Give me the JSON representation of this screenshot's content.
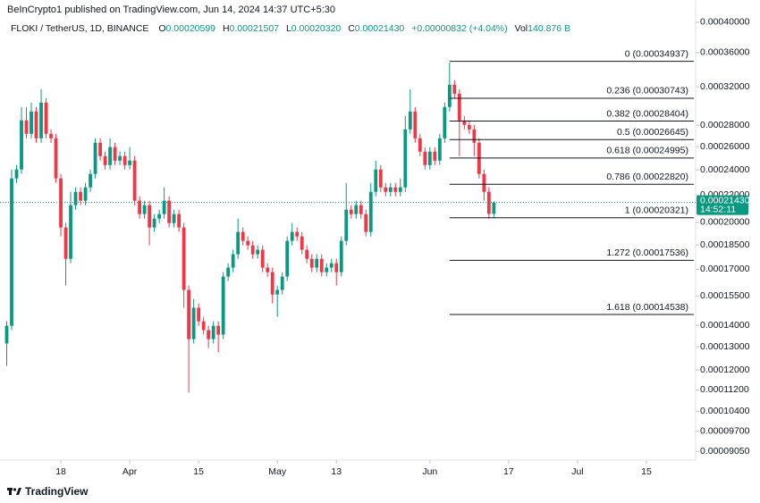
{
  "chart_data": {
    "type": "candlestick",
    "header": "BeInCrypto1 published on TradingView.com, Jun 14, 2024 14:37 UTC+5:30",
    "symbol": "FLOKI / TetherUS, 1D, BINANCE",
    "fields": [
      {
        "key": "O",
        "value": "0.00020599"
      },
      {
        "key": "H",
        "value": "0.00021507"
      },
      {
        "key": "L",
        "value": "0.00020320"
      },
      {
        "key": "C",
        "value": "0.00021430"
      }
    ],
    "change": "+0.00000832 (+4.04%)",
    "volume_key": "Vol",
    "volume": "140.876 B",
    "brand": "TradingView",
    "up_color": "#089981",
    "down_color": "#f23645",
    "log_scale": true,
    "grid": false,
    "x": [
      "2024-03-07",
      "2024-03-08",
      "2024-03-09",
      "2024-03-10",
      "2024-03-11",
      "2024-03-12",
      "2024-03-13",
      "2024-03-14",
      "2024-03-15",
      "2024-03-16",
      "2024-03-17",
      "2024-03-18",
      "2024-03-19",
      "2024-03-20",
      "2024-03-21",
      "2024-03-22",
      "2024-03-23",
      "2024-03-24",
      "2024-03-25",
      "2024-03-26",
      "2024-03-27",
      "2024-03-28",
      "2024-03-29",
      "2024-03-30",
      "2024-03-31",
      "2024-04-01",
      "2024-04-02",
      "2024-04-03",
      "2024-04-04",
      "2024-04-05",
      "2024-04-06",
      "2024-04-07",
      "2024-04-08",
      "2024-04-09",
      "2024-04-10",
      "2024-04-11",
      "2024-04-12",
      "2024-04-13",
      "2024-04-14",
      "2024-04-15",
      "2024-04-16",
      "2024-04-17",
      "2024-04-18",
      "2024-04-19",
      "2024-04-20",
      "2024-04-21",
      "2024-04-22",
      "2024-04-23",
      "2024-04-24",
      "2024-04-25",
      "2024-04-26",
      "2024-04-27",
      "2024-04-28",
      "2024-04-29",
      "2024-04-30",
      "2024-05-01",
      "2024-05-02",
      "2024-05-03",
      "2024-05-04",
      "2024-05-05",
      "2024-05-06",
      "2024-05-07",
      "2024-05-08",
      "2024-05-09",
      "2024-05-10",
      "2024-05-11",
      "2024-05-12",
      "2024-05-13",
      "2024-05-14",
      "2024-05-15",
      "2024-05-16",
      "2024-05-17",
      "2024-05-18",
      "2024-05-19",
      "2024-05-20",
      "2024-05-21",
      "2024-05-22",
      "2024-05-23",
      "2024-05-24",
      "2024-05-25",
      "2024-05-26",
      "2024-05-27",
      "2024-05-28",
      "2024-05-29",
      "2024-05-30",
      "2024-05-31",
      "2024-06-01",
      "2024-06-02",
      "2024-06-03",
      "2024-06-04",
      "2024-06-05",
      "2024-06-06",
      "2024-06-07",
      "2024-06-08",
      "2024-06-09",
      "2024-06-10",
      "2024-06-11",
      "2024-06-12",
      "2024-06-13",
      "2024-06-14"
    ],
    "open": [
      0.0001315,
      0.0001398,
      0.0002329,
      0.0002402,
      0.0002847,
      0.0002718,
      0.0002936,
      0.0002676,
      0.0003028,
      0.0002718,
      0.0002676,
      0.0002329,
      0.0001965,
      0.0001763,
      0.0002123,
      0.0002223,
      0.0002156,
      0.0002258,
      0.0002365,
      0.0002635,
      0.0002516,
      0.0002439,
      0.0002595,
      0.0002477,
      0.0002516,
      0.0002439,
      0.0002477,
      0.0002156,
      0.0002058,
      0.0002123,
      0.0001965,
      0.0002026,
      0.0002058,
      0.0002156,
      0.0001995,
      0.0002058,
      0.0001965,
      0.0001583,
      0.0001335,
      0.0001488,
      0.000142,
      0.0001377,
      0.0001335,
      0.0001398,
      0.0001356,
      0.0001658,
      0.000171,
      0.0001791,
      0.0001935,
      0.0001876,
      0.0001847,
      0.0001791,
      0.0001819,
      0.000171,
      0.0001683,
      0.0001558,
      0.0001583,
      0.0001658,
      0.0001876,
      0.0001935,
      0.0001905,
      0.0001819,
      0.0001763,
      0.000171,
      0.0001763,
      0.0001683,
      0.000171,
      0.0001736,
      0.0001683,
      0.0001876,
      0.000209,
      0.0002058,
      0.0002123,
      0.0002058,
      0.0001935,
      0.0002223,
      0.0002402,
      0.0002258,
      0.0002223,
      0.0002258,
      0.0002223,
      0.0002258,
      0.000276,
      0.0002936,
      0.0002676,
      0.0002555,
      0.0002439,
      0.0002555,
      0.0002477,
      0.0002676,
      0.0002982,
      0.0003221,
      0.0003123,
      0.0002847,
      0.0002803,
      0.000276,
      0.0002635,
      0.0002365,
      0.0002223,
      0.00020599
    ],
    "high": [
      0.000142,
      0.0002402,
      0.0002439,
      0.0002982,
      0.0002982,
      0.0003028,
      0.0002982,
      0.0003172,
      0.0003075,
      0.000276,
      0.0002718,
      0.0002365,
      0.0001995,
      0.0002223,
      0.0002258,
      0.0002258,
      0.0002293,
      0.0002402,
      0.0002676,
      0.0002676,
      0.0002555,
      0.0002676,
      0.0002635,
      0.0002555,
      0.0002555,
      0.0002595,
      0.0002516,
      0.0002189,
      0.0002156,
      0.0002156,
      0.0002058,
      0.000209,
      0.0002258,
      0.0002189,
      0.000209,
      0.000209,
      0.0001995,
      0.0001607,
      0.0001534,
      0.0001511,
      0.0001442,
      0.0001398,
      0.000142,
      0.000142,
      0.0001683,
      0.0001736,
      0.0001819,
      0.0002026,
      0.0001965,
      0.0001905,
      0.0001876,
      0.0001847,
      0.0001847,
      0.0001736,
      0.000171,
      0.0001607,
      0.0001683,
      0.0001905,
      0.0001995,
      0.0001965,
      0.0001935,
      0.0001847,
      0.0001791,
      0.0001791,
      0.0001791,
      0.0001736,
      0.0001763,
      0.0001763,
      0.0001905,
      0.0002293,
      0.0002123,
      0.0002156,
      0.0002156,
      0.000209,
      0.0002293,
      0.0002477,
      0.0002439,
      0.0002293,
      0.0002293,
      0.0002293,
      0.0002329,
      0.0002891,
      0.0003172,
      0.0002982,
      0.0002718,
      0.0002595,
      0.0002595,
      0.0002595,
      0.0002718,
      0.0003028,
      0.000348,
      0.0003271,
      0.0003172,
      0.0002891,
      0.0002847,
      0.0002803,
      0.0002676,
      0.0002402,
      0.0002258,
      0.00021507
    ],
    "low": [
      0.0001217,
      0.0001377,
      0.0002293,
      0.0002365,
      0.0002676,
      0.0002676,
      0.0002635,
      0.0002635,
      0.0002676,
      0.0002635,
      0.0002293,
      0.0001905,
      0.0001607,
      0.0001736,
      0.000209,
      0.0002123,
      0.0002123,
      0.0002223,
      0.0002329,
      0.0002477,
      0.0002402,
      0.0002402,
      0.0002439,
      0.0002439,
      0.0002402,
      0.0002402,
      0.0002123,
      0.0002026,
      0.0002026,
      0.0001847,
      0.0001935,
      0.0001995,
      0.0002026,
      0.0001965,
      0.0001965,
      0.0001935,
      0.0001488,
      0.0001109,
      0.0001315,
      0.0001398,
      0.0001356,
      0.0001294,
      0.0001315,
      0.0001275,
      0.0001335,
      0.0001632,
      0.0001683,
      0.0001763,
      0.0001847,
      0.0001819,
      0.0001763,
      0.0001763,
      0.0001683,
      0.0001658,
      0.0001511,
      0.0001442,
      0.0001558,
      0.0001632,
      0.0001847,
      0.0001876,
      0.0001791,
      0.0001736,
      0.0001683,
      0.0001683,
      0.0001658,
      0.0001658,
      0.0001683,
      0.0001607,
      0.0001658,
      0.0001847,
      0.0002026,
      0.0002026,
      0.0002026,
      0.0001905,
      0.0001905,
      0.0002189,
      0.0002223,
      0.0002189,
      0.0002189,
      0.0002189,
      0.0002189,
      0.0002223,
      0.0002718,
      0.0002635,
      0.0002516,
      0.0002402,
      0.0002402,
      0.0002439,
      0.0002439,
      0.0002635,
      0.0002936,
      0.0003075,
      0.0002516,
      0.000276,
      0.0002718,
      0.0002516,
      0.0002329,
      0.0002156,
      0.0002026,
      0.0002032
    ],
    "close": [
      0.0001398,
      0.0002329,
      0.0002402,
      0.0002847,
      0.0002718,
      0.0002936,
      0.0002676,
      0.0003028,
      0.0002718,
      0.0002676,
      0.0002329,
      0.0001965,
      0.0001763,
      0.0002123,
      0.0002223,
      0.0002156,
      0.0002258,
      0.0002365,
      0.0002635,
      0.0002516,
      0.0002439,
      0.0002595,
      0.0002477,
      0.0002516,
      0.0002439,
      0.0002477,
      0.0002156,
      0.0002058,
      0.0002123,
      0.0001965,
      0.0002026,
      0.0002058,
      0.0002156,
      0.0001995,
      0.0002058,
      0.0001965,
      0.0001583,
      0.0001335,
      0.0001488,
      0.000142,
      0.0001377,
      0.0001335,
      0.0001398,
      0.0001356,
      0.0001658,
      0.000171,
      0.0001791,
      0.0001935,
      0.0001876,
      0.0001847,
      0.0001791,
      0.0001819,
      0.000171,
      0.0001683,
      0.0001558,
      0.0001583,
      0.0001658,
      0.0001876,
      0.0001935,
      0.0001905,
      0.0001819,
      0.0001763,
      0.000171,
      0.0001763,
      0.0001683,
      0.000171,
      0.0001736,
      0.0001683,
      0.0001876,
      0.000209,
      0.0002058,
      0.0002123,
      0.0002058,
      0.0001935,
      0.0002223,
      0.0002402,
      0.0002258,
      0.0002223,
      0.0002258,
      0.0002223,
      0.0002258,
      0.000276,
      0.0002936,
      0.0002676,
      0.0002555,
      0.0002439,
      0.0002555,
      0.0002477,
      0.0002676,
      0.0002982,
      0.0003221,
      0.0003123,
      0.0002847,
      0.0002803,
      0.000276,
      0.0002635,
      0.0002365,
      0.0002223,
      0.000206,
      0.0002143
    ],
    "xlim": [
      "2024-03-06",
      "2024-07-25"
    ],
    "xticks": [
      {
        "value": "2024-03-18",
        "label": "18"
      },
      {
        "value": "2024-04-01",
        "label": "Apr"
      },
      {
        "value": "2024-04-15",
        "label": "15"
      },
      {
        "value": "2024-05-01",
        "label": "May"
      },
      {
        "value": "2024-05-13",
        "label": "13"
      },
      {
        "value": "2024-06-01",
        "label": "Jun"
      },
      {
        "value": "2024-06-17",
        "label": "17"
      },
      {
        "value": "2024-07-01",
        "label": "Jul"
      },
      {
        "value": "2024-07-15",
        "label": "15"
      }
    ],
    "ylim": [
      8.78e-05,
      0.000432
    ],
    "yticks": [
      {
        "value": 0.0004,
        "label": "0.00040000"
      },
      {
        "value": 0.00036,
        "label": "0.00036000"
      },
      {
        "value": 0.00032,
        "label": "0.00032000"
      },
      {
        "value": 0.00028,
        "label": "0.00028000"
      },
      {
        "value": 0.00026,
        "label": "0.00026000"
      },
      {
        "value": 0.00024,
        "label": "0.00024000"
      },
      {
        "value": 0.00022,
        "label": "0.00022000"
      },
      {
        "value": 0.0002,
        "label": "0.00020000"
      },
      {
        "value": 0.000185,
        "label": "0.00018500"
      },
      {
        "value": 0.00017,
        "label": "0.00017000"
      },
      {
        "value": 0.000155,
        "label": "0.00015500"
      },
      {
        "value": 0.00014,
        "label": "0.00014000"
      },
      {
        "value": 0.00013,
        "label": "0.00013000"
      },
      {
        "value": 0.00012,
        "label": "0.00012000"
      },
      {
        "value": 0.000112,
        "label": "0.00011200"
      },
      {
        "value": 0.000104,
        "label": "0.00010400"
      },
      {
        "value": 9.7e-05,
        "label": "0.00009700"
      },
      {
        "value": 9.05e-05,
        "label": "0.00009050"
      }
    ],
    "fib": {
      "start": "2024-06-05",
      "levels": [
        {
          "value": 0.00034937,
          "label": "0 (0.00034937)"
        },
        {
          "value": 0.00030743,
          "label": "0.236 (0.00030743)"
        },
        {
          "value": 0.00028404,
          "label": "0.382 (0.00028404)"
        },
        {
          "value": 0.00026645,
          "label": "0.5 (0.00026645)"
        },
        {
          "value": 0.00024995,
          "label": "0.618 (0.00024995)"
        },
        {
          "value": 0.0002282,
          "label": "0.786 (0.00022820)"
        },
        {
          "value": 0.00020321,
          "label": "1 (0.00020321)"
        },
        {
          "value": 0.00017536,
          "label": "1.272 (0.00017536)"
        },
        {
          "value": 0.00014538,
          "label": "1.618 (0.00014538)"
        }
      ]
    },
    "last_price": {
      "value": 0.0002143,
      "label": "0.00021430"
    },
    "countdown": "14:52:11"
  }
}
